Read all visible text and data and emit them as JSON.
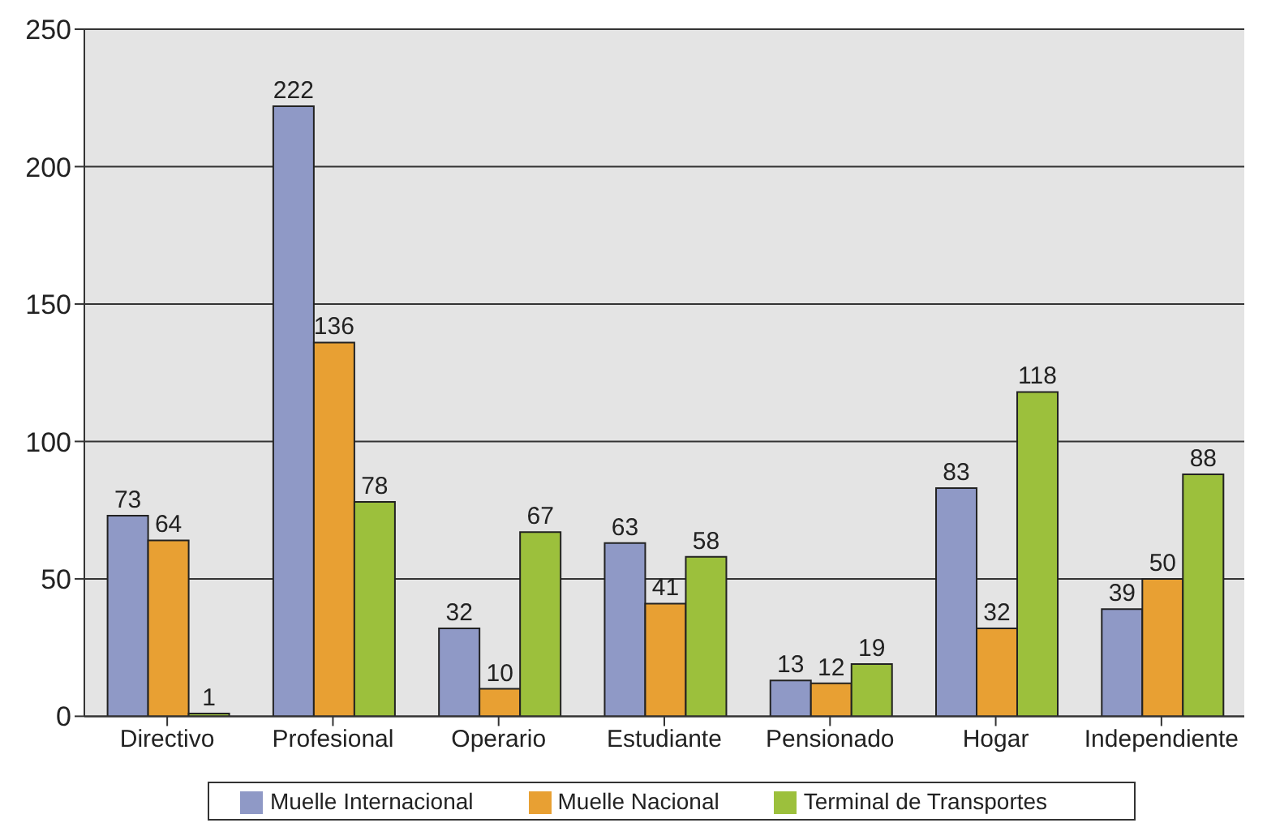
{
  "chart_data": {
    "type": "bar",
    "categories": [
      "Directivo",
      "Profesional",
      "Operario",
      "Estudiante",
      "Pensionado",
      "Hogar",
      "Independiente"
    ],
    "series": [
      {
        "name": "Muelle Internacional",
        "color": "#8f99c6",
        "values": [
          73,
          222,
          32,
          63,
          13,
          83,
          39
        ]
      },
      {
        "name": "Muelle Nacional",
        "color": "#e8a033",
        "values": [
          64,
          136,
          10,
          41,
          12,
          32,
          50
        ]
      },
      {
        "name": "Terminal de Transportes",
        "color": "#9cc03c",
        "values": [
          1,
          78,
          67,
          58,
          19,
          118,
          88
        ]
      }
    ],
    "ylim": [
      0,
      250
    ],
    "yticks": [
      0,
      50,
      100,
      150,
      200,
      250
    ],
    "grid": "y",
    "legend": "bottom",
    "data_labels": true
  }
}
